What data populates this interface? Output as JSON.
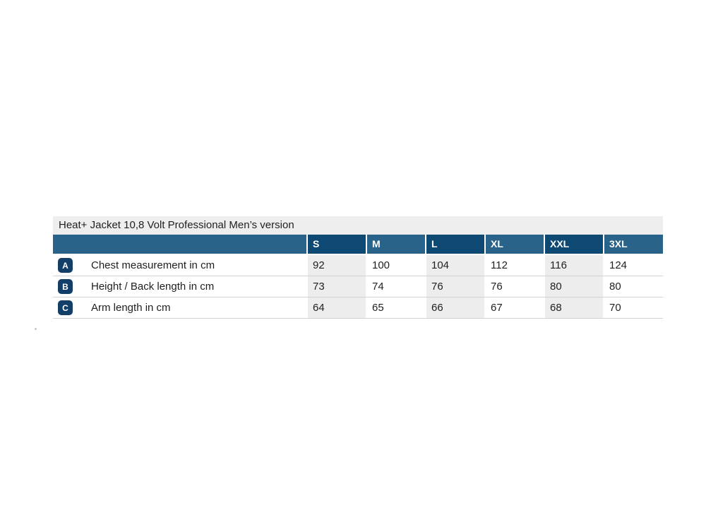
{
  "size_chart": {
    "title": "Heat+ Jacket 10,8 Volt Professional Men’s version",
    "columns": [
      "S",
      "M",
      "L",
      "XL",
      "XXL",
      "3XL"
    ],
    "rows": [
      {
        "badge": "A",
        "label": "Chest measurement in cm",
        "values": [
          "92",
          "100",
          "104",
          "112",
          "116",
          "124"
        ]
      },
      {
        "badge": "B",
        "label": "Height / Back length in cm",
        "values": [
          "73",
          "74",
          "76",
          "76",
          "80",
          "80"
        ]
      },
      {
        "badge": "C",
        "label": "Arm length in cm",
        "values": [
          "64",
          "65",
          "66",
          "67",
          "68",
          "70"
        ]
      }
    ],
    "colors": {
      "header_dark": "#0d4973",
      "header_medium": "#2a6389",
      "badge_navy": "#123e68",
      "shaded_cell": "#ededee",
      "title_bar": "#eeeeef",
      "row_separator": "#d2d2d2",
      "text": "#1f1f1f"
    }
  }
}
